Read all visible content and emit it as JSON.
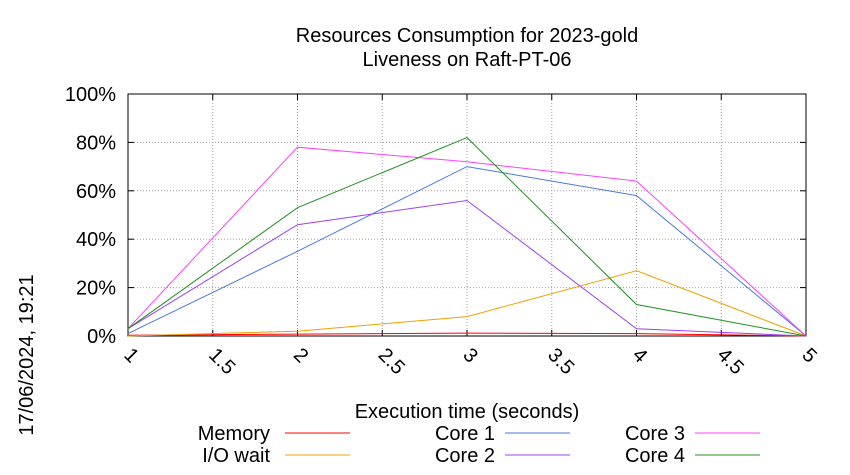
{
  "chart_data": {
    "type": "line",
    "title": "Resources Consumption for 2023-gold",
    "subtitle": "Liveness on Raft-PT-06",
    "xlabel": "Execution time (seconds)",
    "ylabel": "",
    "timestamp": "17/06/2024, 19:21",
    "xlim": [
      1,
      5
    ],
    "ylim": [
      0,
      100
    ],
    "x_ticks": [
      "1",
      "1.5",
      "2",
      "2.5",
      "3",
      "3.5",
      "4",
      "4.5",
      "5"
    ],
    "y_ticks": [
      "0%",
      "20%",
      "40%",
      "60%",
      "80%",
      "100%"
    ],
    "grid": true,
    "legend_position": "bottom",
    "series": [
      {
        "name": "Memory",
        "color": "#ff0000",
        "x": [
          1,
          2,
          3,
          4,
          5
        ],
        "y": [
          0.3,
          0.8,
          1.2,
          1.0,
          0
        ]
      },
      {
        "name": "I/O wait",
        "color": "#f0a000",
        "x": [
          1,
          2,
          3,
          4,
          5
        ],
        "y": [
          0,
          2,
          8,
          27,
          0
        ]
      },
      {
        "name": "Core 1",
        "color": "#4a7ad8",
        "x": [
          1,
          2,
          3,
          4,
          5
        ],
        "y": [
          1,
          35,
          70,
          58,
          0
        ]
      },
      {
        "name": "Core 2",
        "color": "#a040f0",
        "x": [
          1,
          2,
          3,
          4,
          5
        ],
        "y": [
          3,
          46,
          56,
          3,
          0
        ]
      },
      {
        "name": "Core 3",
        "color": "#ff40ff",
        "x": [
          1,
          2,
          3,
          4,
          5
        ],
        "y": [
          3,
          78,
          72,
          64,
          0
        ]
      },
      {
        "name": "Core 4",
        "color": "#209020",
        "x": [
          1,
          2,
          3,
          4,
          5
        ],
        "y": [
          3,
          53,
          82,
          13,
          0
        ]
      }
    ]
  }
}
